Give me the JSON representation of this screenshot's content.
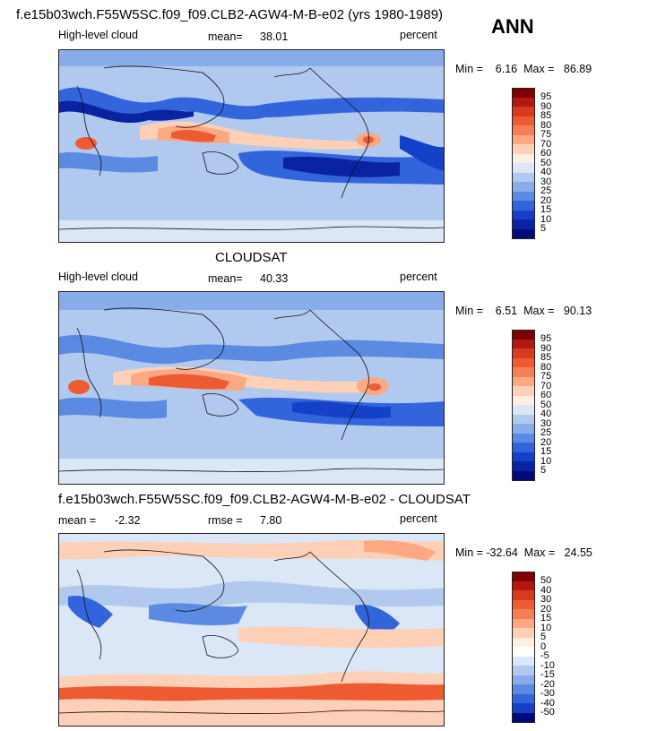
{
  "panel1": {
    "title": "f.e15b03wch.F55W5SC.f09_f09.CLB2-AGW4-M-B-e02 (yrs 1980-1989)",
    "left_label": "High-level cloud",
    "mean_label": "mean=",
    "mean_value": "38.01",
    "units": "percent",
    "minmax": "Min =    6.16  Max =   86.89",
    "colorbar_levels": [
      "95",
      "90",
      "85",
      "80",
      "75",
      "70",
      "60",
      "50",
      "40",
      "30",
      "25",
      "20",
      "15",
      "10",
      "5"
    ]
  },
  "season": "ANN",
  "panel2": {
    "title": "CLOUDSAT",
    "left_label": "High-level cloud",
    "mean_label": "mean=",
    "mean_value": "40.33",
    "units": "percent",
    "minmax": "Min =    6.51  Max =   90.13",
    "colorbar_levels": [
      "95",
      "90",
      "85",
      "80",
      "75",
      "70",
      "60",
      "50",
      "40",
      "30",
      "25",
      "20",
      "15",
      "10",
      "5"
    ]
  },
  "panel3": {
    "title": "f.e15b03wch.F55W5SC.f09_f09.CLB2-AGW4-M-B-e02 - CLOUDSAT",
    "mean_label": "mean =",
    "mean_value": "-2.32",
    "rmse_label": "rmse =",
    "rmse_value": "7.80",
    "units": "percent",
    "minmax": "Min = -32.64  Max =   24.55",
    "colorbar_levels": [
      "50",
      "40",
      "30",
      "20",
      "15",
      "10",
      "5",
      "0",
      "-5",
      "-10",
      "-15",
      "-20",
      "-30",
      "-40",
      "-50"
    ]
  },
  "colors": {
    "abs_scale": [
      "#7f0000",
      "#b2180b",
      "#d73a1e",
      "#ee5b33",
      "#f87f55",
      "#fca882",
      "#fdd0b7",
      "#fdf0e3",
      "#dbe7f6",
      "#b1c9ef",
      "#89adea",
      "#5b8ae2",
      "#3265dc",
      "#1541c8",
      "#0a23a0",
      "#000a78"
    ],
    "diff_scale": [
      "#7f0000",
      "#b2180b",
      "#d73a1e",
      "#ee5b33",
      "#f87f55",
      "#fca882",
      "#fdd0b7",
      "#fdf0e3",
      "#ffffff",
      "#dbe7f6",
      "#b1c9ef",
      "#89adea",
      "#5b8ae2",
      "#3265dc",
      "#1541c8",
      "#000a78"
    ]
  }
}
